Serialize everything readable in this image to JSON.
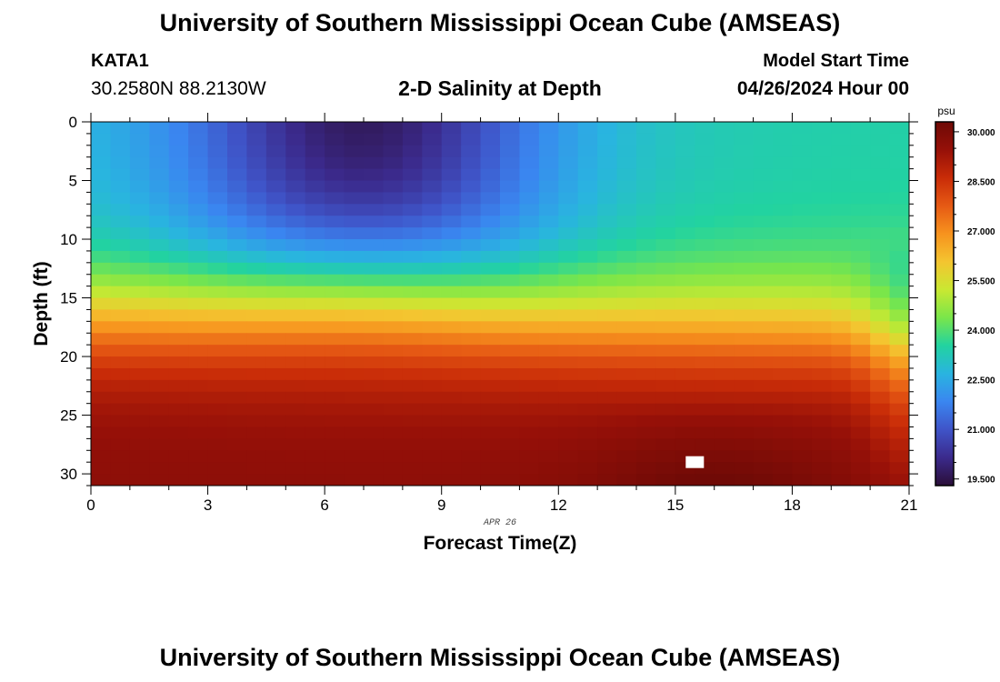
{
  "header": {
    "title": "University of Southern Mississippi Ocean Cube (AMSEAS)",
    "station": "KATA1",
    "coordinates": "30.2580N  88.2130W",
    "subtitle": "2-D Salinity at Depth",
    "start_label": "Model Start Time",
    "start_value": "04/26/2024 Hour 00"
  },
  "footer": {
    "title": "University of Southern Mississippi Ocean Cube (AMSEAS)"
  },
  "chart_data": {
    "type": "heatmap",
    "title": "2-D Salinity at Depth",
    "xlabel": "Forecast Time(Z)",
    "ylabel": "Depth (ft)",
    "date_label": "APR 26",
    "x_ticks": [
      "0",
      "3",
      "6",
      "9",
      "12",
      "15",
      "18",
      "21"
    ],
    "y_ticks": [
      "0",
      "5",
      "10",
      "15",
      "20",
      "25",
      "30"
    ],
    "xlim": [
      0,
      21
    ],
    "ylim": [
      0,
      31
    ],
    "colorbar": {
      "unit": "psu",
      "ticks": [
        "30.000",
        "28.500",
        "27.000",
        "25.500",
        "24.000",
        "22.500",
        "21.000",
        "19.500"
      ],
      "range": [
        19.3,
        30.3
      ],
      "stops": [
        "#2a0e37",
        "#3b2a8c",
        "#3f54c8",
        "#3a86f0",
        "#29b4e0",
        "#22d3a0",
        "#7ae64a",
        "#c9e832",
        "#f4c530",
        "#f7931e",
        "#e65a14",
        "#c92c08",
        "#961008",
        "#6e0a06"
      ]
    },
    "missing_cell": {
      "time": 15.5,
      "depth": 29
    }
  },
  "icons": {
    "colorbar": "color-scale-icon"
  }
}
